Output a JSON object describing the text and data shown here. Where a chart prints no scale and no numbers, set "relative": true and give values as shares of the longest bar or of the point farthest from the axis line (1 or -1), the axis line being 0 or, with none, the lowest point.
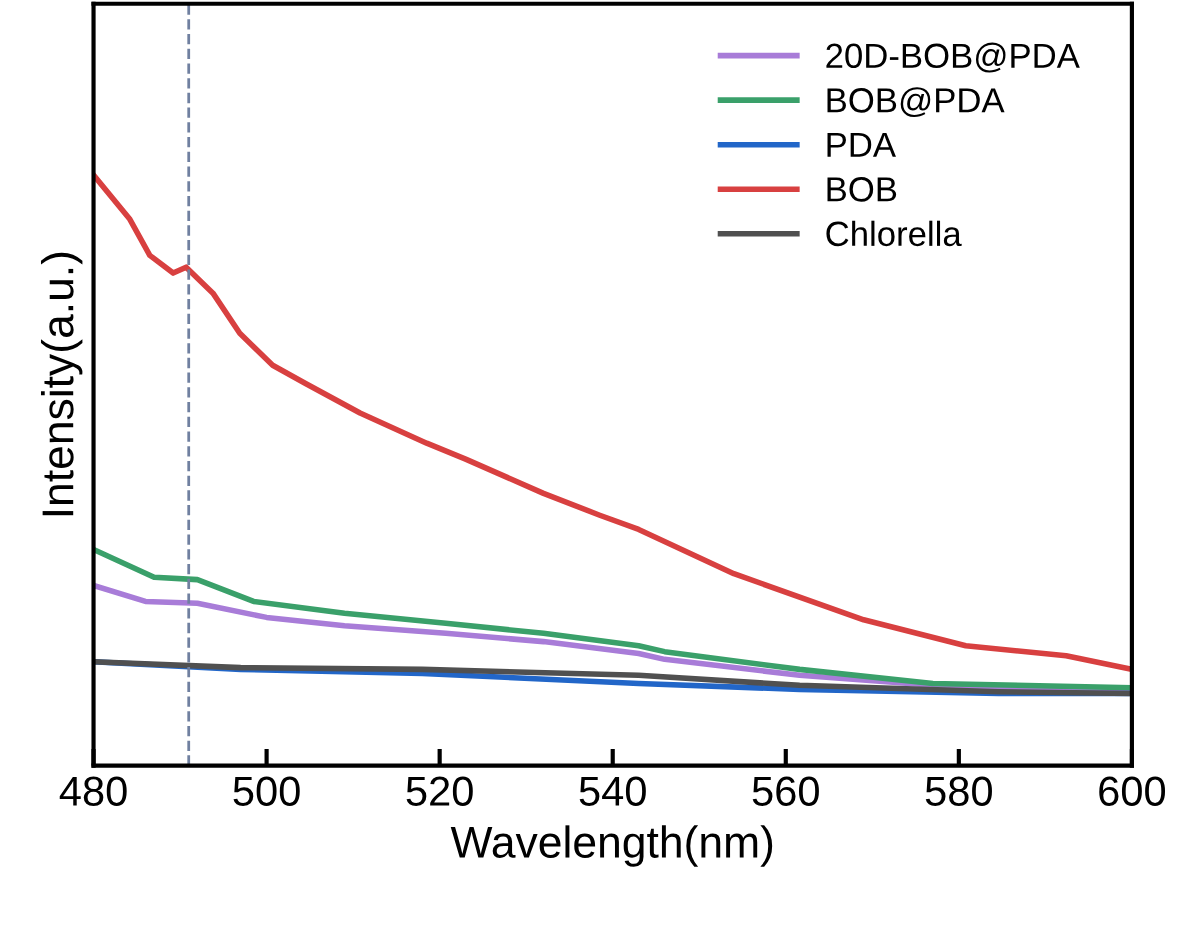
{
  "chart_data": {
    "type": "line",
    "relative": true,
    "xlabel": "Wavelength(nm)",
    "ylabel": "Intensity(a.u.)",
    "xlim": [
      480,
      600
    ],
    "xticks": [
      480,
      500,
      520,
      540,
      560,
      580,
      600
    ],
    "tick_labels": "x",
    "grid": false,
    "legend": "top right",
    "marker": "none",
    "line_style": "solid",
    "ref_lines": [
      {
        "axis": "x",
        "value": 491,
        "color": "#7080a0",
        "line_style": "dashed"
      }
    ],
    "series": [
      {
        "name": "20D-BOB@PDA",
        "color": "#a87cd8",
        "x": [
          480,
          486,
          492,
          500,
          509,
          520.7,
          532,
          543,
          546,
          561.6,
          577,
          600
        ],
        "values": [
          0.305,
          0.278,
          0.275,
          0.251,
          0.237,
          0.224,
          0.21,
          0.19,
          0.18,
          0.153,
          0.136,
          0.125
        ]
      },
      {
        "name": "BOB@PDA",
        "color": "#3aa06a",
        "x": [
          480,
          487,
          492,
          498.5,
          509,
          520.7,
          532,
          543,
          546,
          561.6,
          577,
          600
        ],
        "values": [
          0.366,
          0.319,
          0.315,
          0.278,
          0.258,
          0.241,
          0.224,
          0.203,
          0.193,
          0.163,
          0.139,
          0.132
        ]
      },
      {
        "name": "PDA",
        "color": "#2266c8",
        "x": [
          480,
          497,
          518,
          543,
          561.6,
          584.6,
          600
        ],
        "values": [
          0.176,
          0.163,
          0.156,
          0.139,
          0.129,
          0.122,
          0.122
        ]
      },
      {
        "name": "BOB",
        "color": "#d84040",
        "x": [
          480,
          484.2,
          486.5,
          489.2,
          490.7,
          493.8,
          496.9,
          500.7,
          504.5,
          510.8,
          518.5,
          523,
          532,
          538.5,
          543,
          554,
          569,
          580.8,
          592.4,
          600
        ],
        "values": [
          1.0,
          0.925,
          0.864,
          0.834,
          0.844,
          0.8,
          0.732,
          0.678,
          0.647,
          0.597,
          0.546,
          0.519,
          0.461,
          0.424,
          0.4,
          0.325,
          0.247,
          0.203,
          0.186,
          0.163
        ]
      },
      {
        "name": "Chlorella",
        "color": "#505050",
        "x": [
          480,
          497,
          518,
          543,
          561.6,
          584.6,
          600
        ],
        "values": [
          0.176,
          0.166,
          0.163,
          0.153,
          0.136,
          0.125,
          0.122
        ]
      }
    ]
  }
}
